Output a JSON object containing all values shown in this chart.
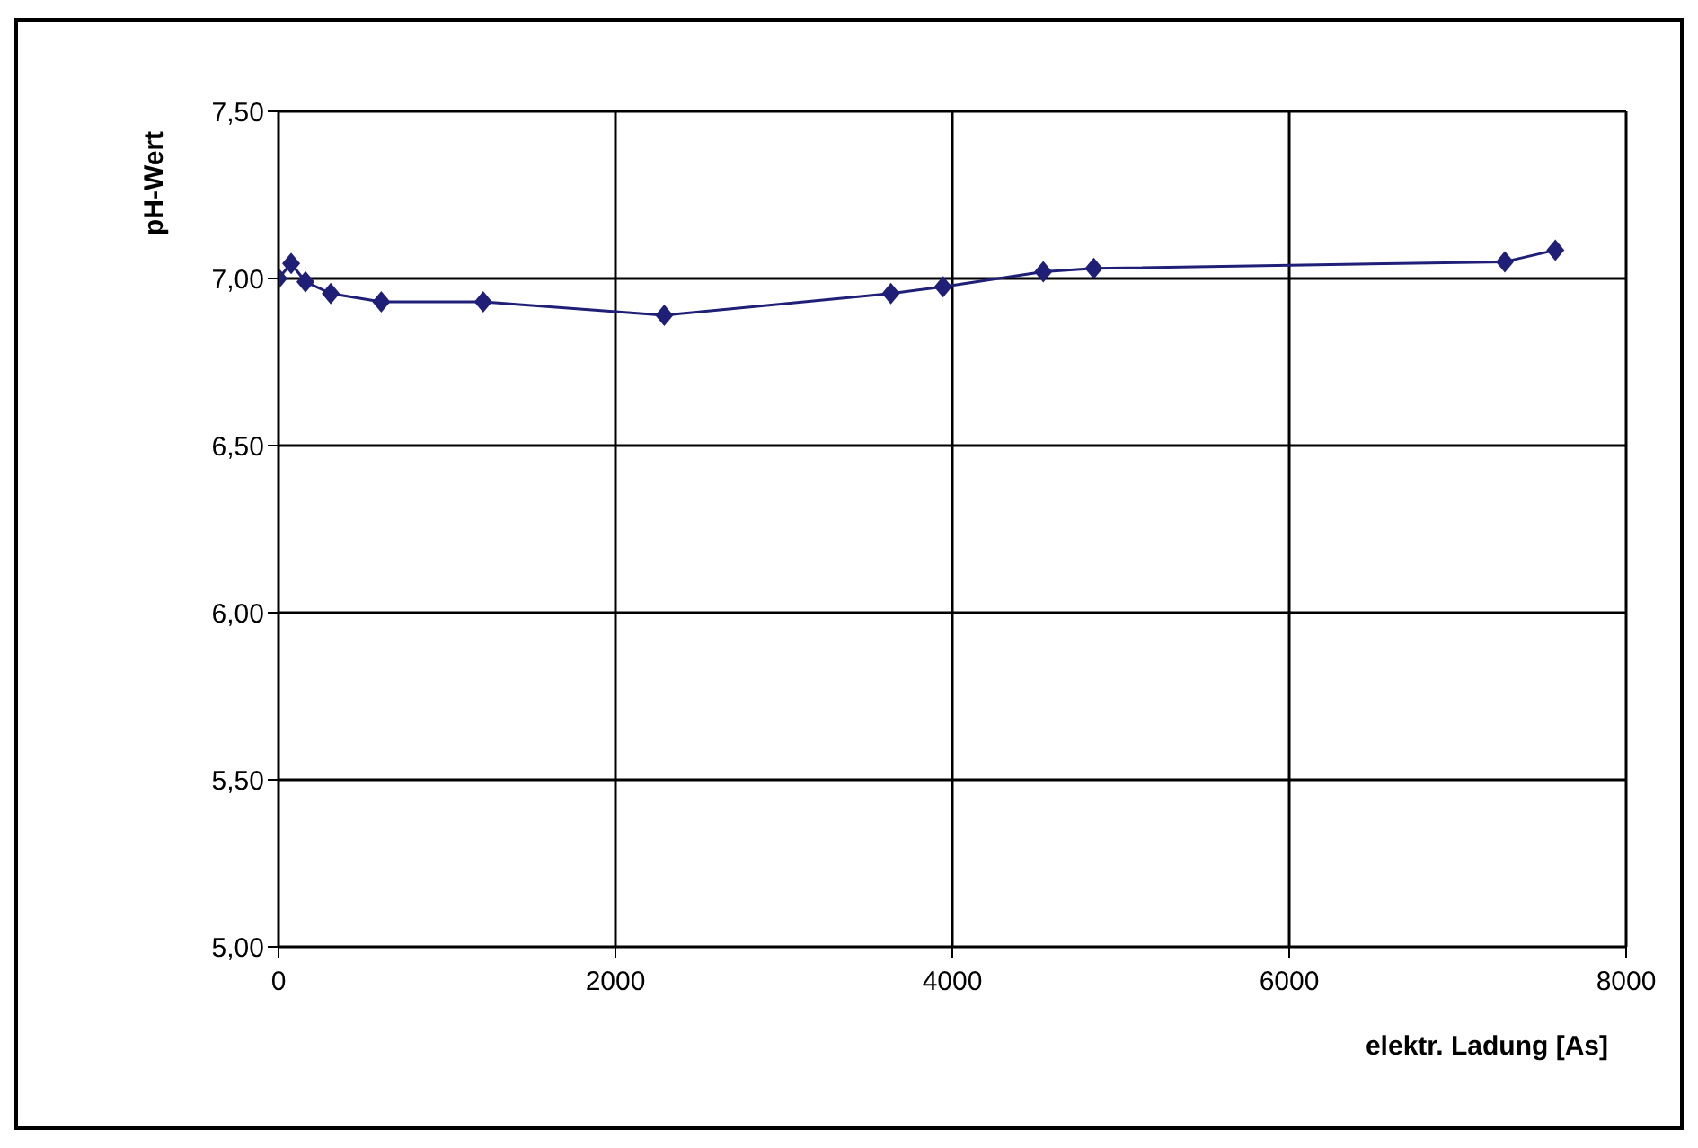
{
  "chart_data": {
    "type": "line",
    "xlabel": "elektr. Ladung [As]",
    "ylabel": "pH-Wert",
    "x": [
      0,
      75,
      160,
      310,
      610,
      1215,
      2290,
      3635,
      3945,
      4540,
      4840,
      7280,
      7580
    ],
    "series": [
      {
        "color": "#1f1f78",
        "values": [
          7.0,
          7.045,
          6.99,
          6.955,
          6.93,
          6.93,
          6.89,
          6.955,
          6.975,
          7.02,
          7.03,
          7.05,
          7.085
        ]
      }
    ],
    "xlim": [
      0,
      8000
    ],
    "xticks": [
      0,
      2000,
      4000,
      6000,
      8000
    ],
    "ylim": [
      5,
      7.5
    ],
    "yticks": [
      {
        "value": 5,
        "label": "5,00"
      },
      {
        "value": 5.5,
        "label": "5,50"
      },
      {
        "value": 6,
        "label": "6,00"
      },
      {
        "value": 6.5,
        "label": "6,50"
      },
      {
        "value": 7,
        "label": "7,00"
      },
      {
        "value": 7.5,
        "label": "7,50"
      }
    ],
    "grid": true,
    "marker": "diamond",
    "line_style": "solid",
    "legend": false
  }
}
